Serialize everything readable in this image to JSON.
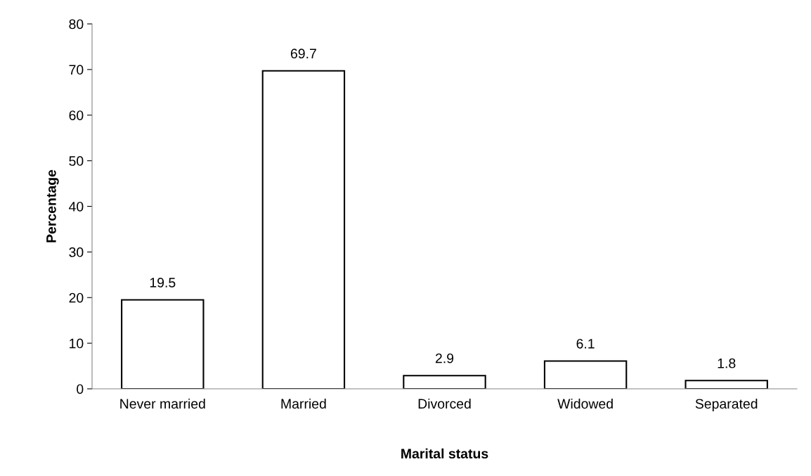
{
  "chart_data": {
    "type": "bar",
    "xlabel": "Marital status",
    "ylabel": "Percentage",
    "categories": [
      "Never married",
      "Married",
      "Divorced",
      "Widowed",
      "Separated"
    ],
    "values": [
      19.5,
      69.7,
      2.9,
      6.1,
      1.8
    ],
    "color": "#ffffff",
    "ylim": [
      0,
      80
    ],
    "yticks": [
      0,
      10,
      20,
      30,
      40,
      50,
      60,
      70,
      80
    ],
    "data_labels": true,
    "grid": false,
    "legend": false
  }
}
